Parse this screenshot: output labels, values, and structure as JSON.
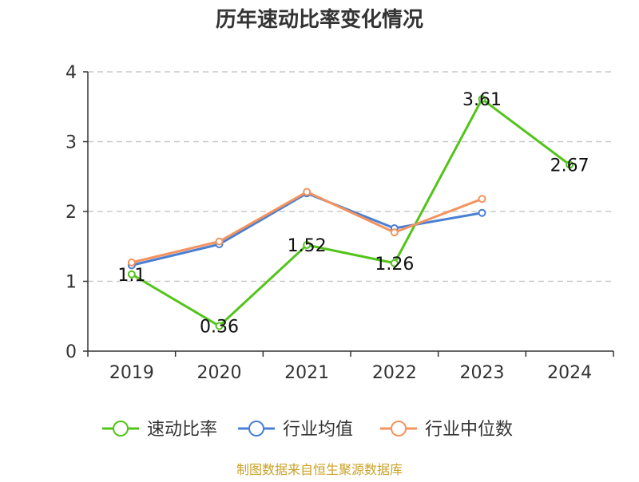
{
  "chart_data": {
    "type": "line",
    "title": "历年速动比率变化情况",
    "categories": [
      "2019",
      "2020",
      "2021",
      "2022",
      "2023",
      "2024"
    ],
    "ylim": [
      0,
      4
    ],
    "yticks": [
      0,
      1,
      2,
      3,
      4
    ],
    "grid": true,
    "legend_position": "bottom",
    "series": [
      {
        "name": "速动比率",
        "color": "#52c41a",
        "values": [
          1.1,
          0.36,
          1.52,
          1.26,
          3.61,
          2.67
        ],
        "labels": [
          "1.1",
          "0.36",
          "1.52",
          "1.26",
          "3.61",
          "2.67"
        ],
        "show_labels": true
      },
      {
        "name": "行业均值",
        "color": "#4a7fd4",
        "values": [
          1.23,
          1.53,
          2.26,
          1.76,
          1.98,
          null
        ],
        "show_labels": false
      },
      {
        "name": "行业中位数",
        "color": "#f4935e",
        "values": [
          1.27,
          1.57,
          2.28,
          1.7,
          2.18,
          null
        ],
        "show_labels": false
      }
    ],
    "source": "制图数据来自恒生聚源数据库"
  }
}
